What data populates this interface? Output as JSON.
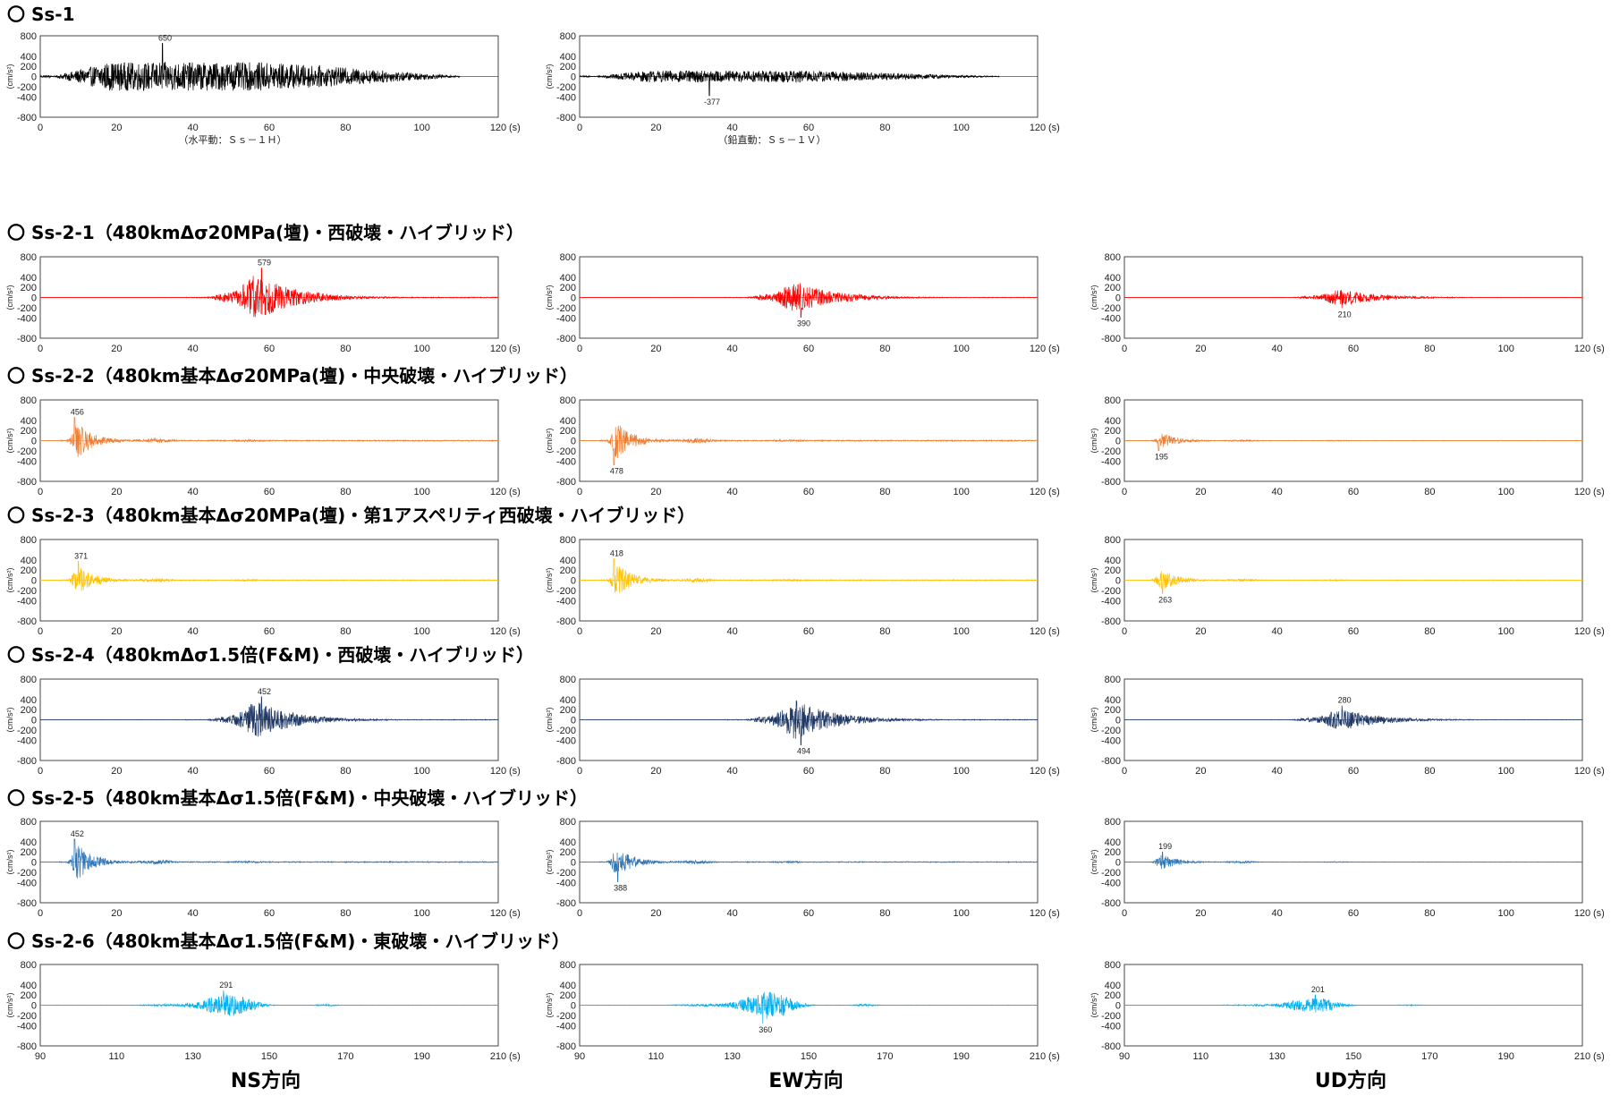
{
  "column_labels": [
    "NS方向",
    "EW方向",
    "UD方向"
  ],
  "unit_label": "(s)",
  "ylabel": "(cm/s²)",
  "chart_data": [
    {
      "group": "Ss-1",
      "heading": "〇 Ss-1",
      "type": "line",
      "direction": "水平動",
      "col": 0,
      "row": 0,
      "color": "#000000",
      "xlim": [
        0,
        120
      ],
      "ylim": [
        -800,
        800
      ],
      "xticks": [
        0,
        20,
        40,
        60,
        80,
        100,
        120
      ],
      "yticks": [
        800,
        400,
        200,
        0,
        -200,
        -400,
        -800
      ],
      "ytick_labels": [
        "800",
        "400",
        "200",
        "0",
        "-200",
        "-400",
        "-800"
      ],
      "duration": [
        0,
        110
      ],
      "peak": 650,
      "peak_label": "650",
      "peak_time": 32,
      "caption": "（水平動：Ｓｓ－１Ｈ）"
    },
    {
      "group": "Ss-1",
      "type": "line",
      "direction": "鉛直動",
      "col": 1,
      "row": 0,
      "color": "#000000",
      "xlim": [
        0,
        120
      ],
      "ylim": [
        -800,
        800
      ],
      "xticks": [
        0,
        20,
        40,
        60,
        80,
        100,
        120
      ],
      "yticks": [
        800,
        400,
        200,
        0,
        -200,
        -400,
        -800
      ],
      "ytick_labels": [
        "800",
        "400",
        "200",
        "0",
        "-200",
        "-400",
        "-800"
      ],
      "duration": [
        0,
        110
      ],
      "peak": -377,
      "peak_label": "-377",
      "peak_time": 34,
      "caption": "（鉛直動：Ｓｓ－１Ｖ）"
    },
    {
      "group": "Ss-2-1",
      "heading": "〇 Ss-2-1（480kmΔσ20MPa(壇)・西破壊・ハイブリッド）",
      "type": "line",
      "direction": "NS",
      "col": 0,
      "row": 1,
      "color": "#ff0000",
      "xlim": [
        0,
        120
      ],
      "ylim": [
        -800,
        800
      ],
      "xticks": [
        0,
        20,
        40,
        60,
        80,
        100,
        120
      ],
      "yticks": [
        800,
        400,
        200,
        0,
        -200,
        -400,
        -800
      ],
      "ytick_labels": [
        "800",
        "400",
        "200",
        "0",
        "-200",
        "-400",
        "-800"
      ],
      "duration": [
        0,
        120
      ],
      "burst_center": 57,
      "peak": 579,
      "peak_label": "579",
      "peak_time": 58
    },
    {
      "group": "Ss-2-1",
      "type": "line",
      "direction": "EW",
      "col": 1,
      "row": 1,
      "color": "#ff0000",
      "xlim": [
        0,
        120
      ],
      "ylim": [
        -800,
        800
      ],
      "xticks": [
        0,
        20,
        40,
        60,
        80,
        100,
        120
      ],
      "yticks": [
        800,
        400,
        200,
        0,
        -200,
        -400,
        -800
      ],
      "ytick_labels": [
        "800",
        "400",
        "200",
        "0",
        "-200",
        "-400",
        "-800"
      ],
      "duration": [
        0,
        120
      ],
      "burst_center": 57,
      "peak": -390,
      "peak_label": "390",
      "peak_time": 58
    },
    {
      "group": "Ss-2-1",
      "type": "line",
      "direction": "UD",
      "col": 2,
      "row": 1,
      "color": "#ff0000",
      "xlim": [
        0,
        120
      ],
      "ylim": [
        -800,
        800
      ],
      "xticks": [
        0,
        20,
        40,
        60,
        80,
        100,
        120
      ],
      "yticks": [
        800,
        400,
        200,
        0,
        -200,
        -400,
        -800
      ],
      "ytick_labels": [
        "800",
        "400",
        "200",
        "0",
        "-200",
        "-400",
        "-800"
      ],
      "duration": [
        0,
        120
      ],
      "burst_center": 57,
      "peak": -210,
      "peak_label": "210",
      "peak_time": 57
    },
    {
      "group": "Ss-2-2",
      "heading": "〇 Ss-2-2（480km基本Δσ20MPa(壇)・中央破壊・ハイブリッド）",
      "type": "line",
      "direction": "NS",
      "col": 0,
      "row": 2,
      "color": "#ed7d31",
      "xlim": [
        0,
        120
      ],
      "ylim": [
        -800,
        800
      ],
      "xticks": [
        0,
        20,
        40,
        60,
        80,
        100,
        120
      ],
      "yticks": [
        800,
        400,
        200,
        0,
        -200,
        -400,
        -800
      ],
      "ytick_labels": [
        "800",
        "400",
        "200",
        "0",
        "-200",
        "-400",
        "-800"
      ],
      "duration": [
        0,
        120
      ],
      "burst_center": 10,
      "peak": 456,
      "peak_label": "456",
      "peak_time": 9
    },
    {
      "group": "Ss-2-2",
      "type": "line",
      "direction": "EW",
      "col": 1,
      "row": 2,
      "color": "#ed7d31",
      "xlim": [
        0,
        120
      ],
      "ylim": [
        -800,
        800
      ],
      "xticks": [
        0,
        20,
        40,
        60,
        80,
        100,
        120
      ],
      "yticks": [
        800,
        400,
        200,
        0,
        -200,
        -400,
        -800
      ],
      "ytick_labels": [
        "800",
        "400",
        "200",
        "0",
        "-200",
        "-400",
        "-800"
      ],
      "duration": [
        0,
        120
      ],
      "burst_center": 10,
      "peak": -478,
      "peak_label": "478",
      "peak_time": 9
    },
    {
      "group": "Ss-2-2",
      "type": "line",
      "direction": "UD",
      "col": 2,
      "row": 2,
      "color": "#ed7d31",
      "xlim": [
        0,
        120
      ],
      "ylim": [
        -800,
        800
      ],
      "xticks": [
        0,
        20,
        40,
        60,
        80,
        100,
        120
      ],
      "yticks": [
        800,
        400,
        200,
        0,
        -200,
        -400,
        -800
      ],
      "ytick_labels": [
        "800",
        "400",
        "200",
        "0",
        "-200",
        "-400",
        "-800"
      ],
      "duration": [
        0,
        120
      ],
      "burst_center": 10,
      "peak": -195,
      "peak_label": "195",
      "peak_time": 9
    },
    {
      "group": "Ss-2-3",
      "heading": "〇 Ss-2-3（480km基本Δσ20MPa(壇)・第1アスペリティ西破壊・ハイブリッド）",
      "type": "line",
      "direction": "NS",
      "col": 0,
      "row": 3,
      "color": "#ffc000",
      "xlim": [
        0,
        120
      ],
      "ylim": [
        -800,
        800
      ],
      "xticks": [
        0,
        20,
        40,
        60,
        80,
        100,
        120
      ],
      "yticks": [
        800,
        400,
        200,
        0,
        -200,
        -400,
        -800
      ],
      "ytick_labels": [
        "800",
        "400",
        "200",
        "0",
        "-200",
        "-400",
        "-800"
      ],
      "duration": [
        0,
        120
      ],
      "burst_center": 10,
      "peak": 371,
      "peak_label": "371",
      "peak_time": 10
    },
    {
      "group": "Ss-2-3",
      "type": "line",
      "direction": "EW",
      "col": 1,
      "row": 3,
      "color": "#ffc000",
      "xlim": [
        0,
        120
      ],
      "ylim": [
        -800,
        800
      ],
      "xticks": [
        0,
        20,
        40,
        60,
        80,
        100,
        120
      ],
      "yticks": [
        800,
        400,
        200,
        0,
        -200,
        -400,
        -800
      ],
      "ytick_labels": [
        "800",
        "400",
        "200",
        "0",
        "-200",
        "-400",
        "-800"
      ],
      "duration": [
        0,
        120
      ],
      "burst_center": 10,
      "peak": 418,
      "peak_label": "418",
      "peak_time": 9
    },
    {
      "group": "Ss-2-3",
      "type": "line",
      "direction": "UD",
      "col": 2,
      "row": 3,
      "color": "#ffc000",
      "xlim": [
        0,
        120
      ],
      "ylim": [
        -800,
        800
      ],
      "xticks": [
        0,
        20,
        40,
        60,
        80,
        100,
        120
      ],
      "yticks": [
        800,
        400,
        200,
        0,
        -200,
        -400,
        -800
      ],
      "ytick_labels": [
        "800",
        "400",
        "200",
        "0",
        "-200",
        "-400",
        "-800"
      ],
      "duration": [
        0,
        120
      ],
      "burst_center": 10,
      "peak": -263,
      "peak_label": "263",
      "peak_time": 10
    },
    {
      "group": "Ss-2-4",
      "heading": "〇 Ss-2-4（480kmΔσ1.5倍(F&M)・西破壊・ハイブリッド）",
      "type": "line",
      "direction": "NS",
      "col": 0,
      "row": 4,
      "color": "#203864",
      "xlim": [
        0,
        120
      ],
      "ylim": [
        -800,
        800
      ],
      "xticks": [
        0,
        20,
        40,
        60,
        80,
        100,
        120
      ],
      "yticks": [
        800,
        400,
        200,
        0,
        -200,
        -400,
        -800
      ],
      "ytick_labels": [
        "800",
        "400",
        "200",
        "0",
        "-200",
        "-400",
        "-800"
      ],
      "duration": [
        0,
        120
      ],
      "burst_center": 57,
      "peak": 452,
      "peak_label": "452",
      "peak_time": 58
    },
    {
      "group": "Ss-2-4",
      "type": "line",
      "direction": "EW",
      "col": 1,
      "row": 4,
      "color": "#203864",
      "xlim": [
        0,
        120
      ],
      "ylim": [
        -800,
        800
      ],
      "xticks": [
        0,
        20,
        40,
        60,
        80,
        100,
        120
      ],
      "yticks": [
        800,
        400,
        200,
        0,
        -200,
        -400,
        -800
      ],
      "ytick_labels": [
        "800",
        "400",
        "200",
        "0",
        "-200",
        "-400",
        "-800"
      ],
      "duration": [
        0,
        120
      ],
      "burst_center": 57,
      "peak": -494,
      "peak_label": "494",
      "peak_time": 58
    },
    {
      "group": "Ss-2-4",
      "type": "line",
      "direction": "UD",
      "col": 2,
      "row": 4,
      "color": "#203864",
      "xlim": [
        0,
        120
      ],
      "ylim": [
        -800,
        800
      ],
      "xticks": [
        0,
        20,
        40,
        60,
        80,
        100,
        120
      ],
      "yticks": [
        800,
        400,
        200,
        0,
        -200,
        -400,
        -800
      ],
      "ytick_labels": [
        "800",
        "400",
        "200",
        "0",
        "-200",
        "-400",
        "-800"
      ],
      "duration": [
        0,
        120
      ],
      "burst_center": 57,
      "peak": 280,
      "peak_label": "280",
      "peak_time": 57
    },
    {
      "group": "Ss-2-5",
      "heading": "〇 Ss-2-5（480km基本Δσ1.5倍(F&M)・中央破壊・ハイブリッド）",
      "type": "line",
      "direction": "NS",
      "col": 0,
      "row": 5,
      "color": "#2e75b6",
      "xlim": [
        0,
        120
      ],
      "ylim": [
        -800,
        800
      ],
      "xticks": [
        0,
        20,
        40,
        60,
        80,
        100,
        120
      ],
      "yticks": [
        800,
        400,
        200,
        0,
        -200,
        -400,
        -800
      ],
      "ytick_labels": [
        "800",
        "400",
        "200",
        "0",
        "-200",
        "-400",
        "-800"
      ],
      "duration": [
        0,
        120
      ],
      "burst_center": 10,
      "peak": 452,
      "peak_label": "452",
      "peak_time": 9
    },
    {
      "group": "Ss-2-5",
      "type": "line",
      "direction": "EW",
      "col": 1,
      "row": 5,
      "color": "#2e75b6",
      "xlim": [
        0,
        120
      ],
      "ylim": [
        -800,
        800
      ],
      "xticks": [
        0,
        20,
        40,
        60,
        80,
        100,
        120
      ],
      "yticks": [
        800,
        400,
        200,
        0,
        -200,
        -400,
        -800
      ],
      "ytick_labels": [
        "800",
        "400",
        "200",
        "0",
        "-200",
        "-400",
        "-800"
      ],
      "duration": [
        0,
        120
      ],
      "burst_center": 10,
      "peak": -388,
      "peak_label": "388",
      "peak_time": 10
    },
    {
      "group": "Ss-2-5",
      "type": "line",
      "direction": "UD",
      "col": 2,
      "row": 5,
      "color": "#2e75b6",
      "xlim": [
        0,
        120
      ],
      "ylim": [
        -800,
        800
      ],
      "xticks": [
        0,
        20,
        40,
        60,
        80,
        100,
        120
      ],
      "yticks": [
        800,
        400,
        200,
        0,
        -200,
        -400,
        -800
      ],
      "ytick_labels": [
        "800",
        "400",
        "200",
        "0",
        "-200",
        "-400",
        "-800"
      ],
      "duration": [
        0,
        120
      ],
      "burst_center": 10,
      "peak": 199,
      "peak_label": "199",
      "peak_time": 10
    },
    {
      "group": "Ss-2-6",
      "heading": "〇 Ss-2-6（480km基本Δσ1.5倍(F&M)・東破壊・ハイブリッド）",
      "type": "line",
      "direction": "NS",
      "col": 0,
      "row": 6,
      "color": "#00b0f0",
      "xlim": [
        90,
        210
      ],
      "ylim": [
        -800,
        800
      ],
      "xticks": [
        90,
        110,
        130,
        150,
        170,
        190,
        210
      ],
      "yticks": [
        800,
        400,
        200,
        0,
        -200,
        -400,
        -800
      ],
      "ytick_labels": [
        "800",
        "400",
        "200",
        "0",
        "-200",
        "-400",
        "-800"
      ],
      "duration": [
        90,
        210
      ],
      "burst_center": 140,
      "peak": 291,
      "peak_label": "291",
      "peak_time": 138
    },
    {
      "group": "Ss-2-6",
      "type": "line",
      "direction": "EW",
      "col": 1,
      "row": 6,
      "color": "#00b0f0",
      "xlim": [
        90,
        210
      ],
      "ylim": [
        -800,
        800
      ],
      "xticks": [
        90,
        110,
        130,
        150,
        170,
        190,
        210
      ],
      "yticks": [
        800,
        400,
        200,
        0,
        -200,
        -400,
        -800
      ],
      "ytick_labels": [
        "800",
        "400",
        "200",
        "0",
        "-200",
        "-400",
        "-800"
      ],
      "duration": [
        90,
        210
      ],
      "burst_center": 140,
      "peak": -360,
      "peak_label": "360",
      "peak_time": 138
    },
    {
      "group": "Ss-2-6",
      "type": "line",
      "direction": "UD",
      "col": 2,
      "row": 6,
      "color": "#00b0f0",
      "xlim": [
        90,
        210
      ],
      "ylim": [
        -800,
        800
      ],
      "xticks": [
        90,
        110,
        130,
        150,
        170,
        190,
        210
      ],
      "yticks": [
        800,
        400,
        200,
        0,
        -200,
        -400,
        -800
      ],
      "ytick_labels": [
        "800",
        "400",
        "200",
        "0",
        "-200",
        "-400",
        "-800"
      ],
      "duration": [
        90,
        210
      ],
      "burst_center": 140,
      "peak": 201,
      "peak_label": "201",
      "peak_time": 140
    }
  ]
}
